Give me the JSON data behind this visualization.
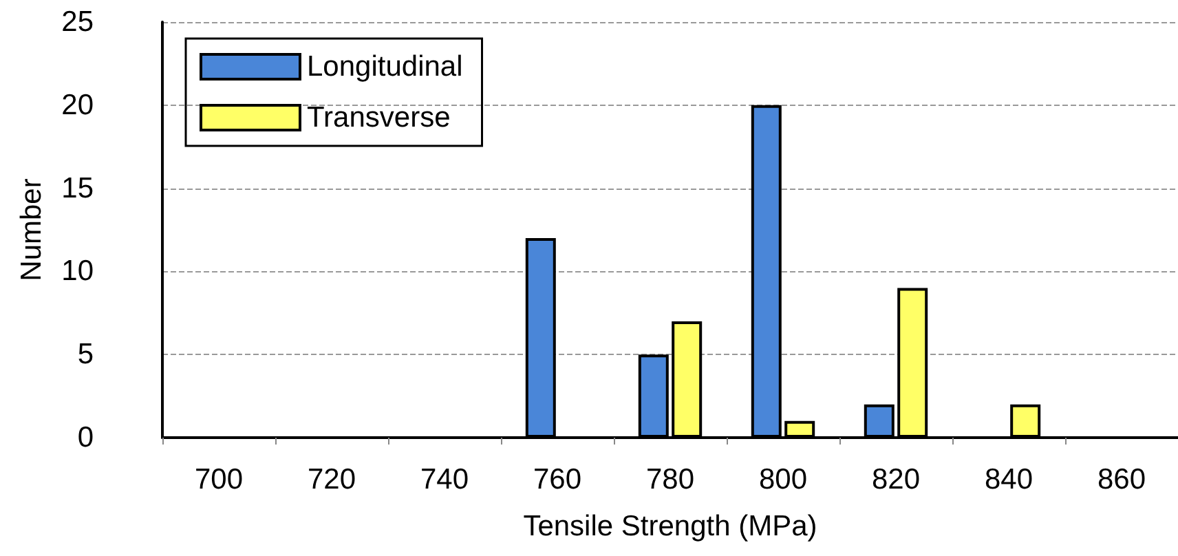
{
  "chart_data": {
    "type": "bar",
    "xlabel": "Tensile Strength (MPa)",
    "ylabel": "Number",
    "categories": [
      "700",
      "720",
      "740",
      "760",
      "780",
      "800",
      "820",
      "840",
      "860"
    ],
    "series": [
      {
        "name": "Longitudinal",
        "color": "#4a86d8",
        "values": [
          0,
          0,
          0,
          12,
          5,
          20,
          2,
          0,
          0
        ]
      },
      {
        "name": "Transverse",
        "color": "#ffff66",
        "values": [
          0,
          0,
          0,
          0,
          7,
          1,
          9,
          2,
          0
        ]
      }
    ],
    "ylim": [
      0,
      25
    ],
    "yticks": [
      0,
      5,
      10,
      15,
      20,
      25
    ],
    "grid": "y",
    "legend": "top left"
  }
}
